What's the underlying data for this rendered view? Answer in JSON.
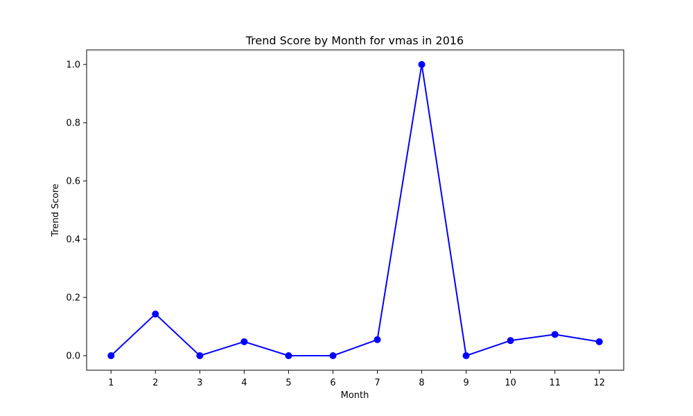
{
  "chart_data": {
    "type": "line",
    "title": "Trend Score by Month for vmas in 2016",
    "xlabel": "Month",
    "ylabel": "Trend Score",
    "x": [
      1,
      2,
      3,
      4,
      5,
      6,
      7,
      8,
      9,
      10,
      11,
      12
    ],
    "x_tick_labels": [
      "1",
      "2",
      "3",
      "4",
      "5",
      "6",
      "7",
      "8",
      "9",
      "10",
      "11",
      "12"
    ],
    "y_ticks": [
      0.0,
      0.2,
      0.4,
      0.6,
      0.8,
      1.0
    ],
    "y_tick_labels": [
      "0.0",
      "0.2",
      "0.4",
      "0.6",
      "0.8",
      "1.0"
    ],
    "xlim": [
      0.45,
      12.55
    ],
    "ylim": [
      -0.05,
      1.05
    ],
    "grid": false,
    "series": [
      {
        "values": [
          0.0,
          0.143,
          0.0,
          0.048,
          0.0,
          0.0,
          0.055,
          1.0,
          0.0,
          0.052,
          0.073,
          0.048
        ],
        "color": "#0000ff",
        "marker": "circle"
      }
    ]
  }
}
